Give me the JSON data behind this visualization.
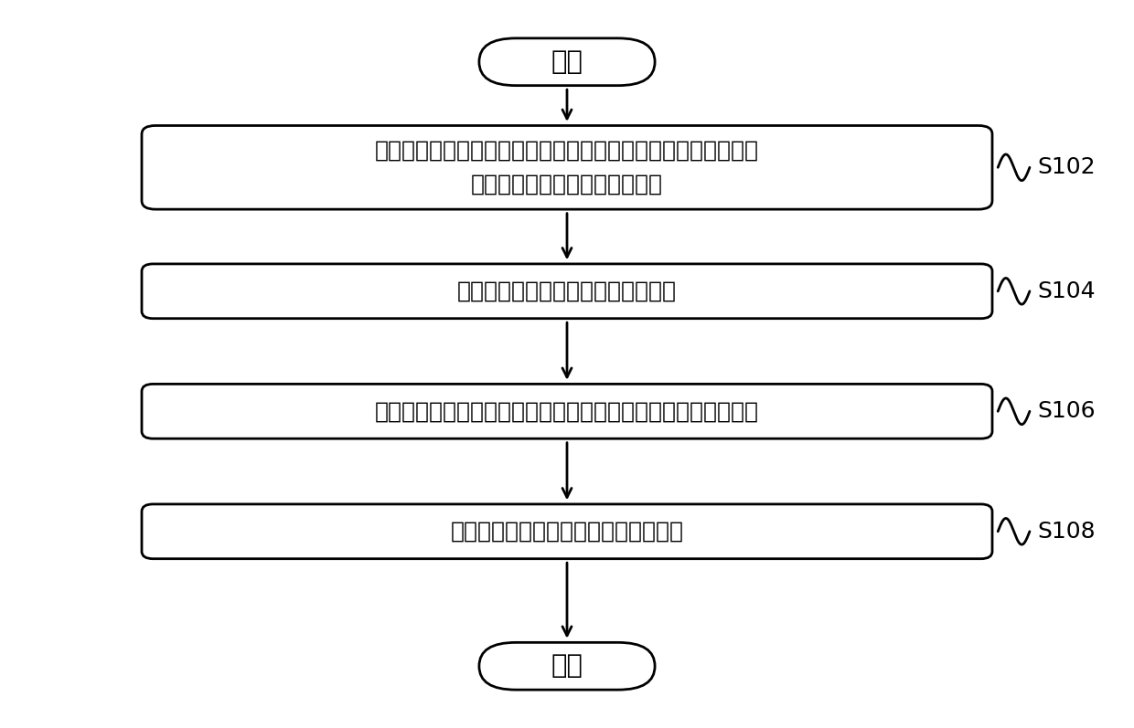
{
  "background_color": "#ffffff",
  "start_end_text": [
    "开始",
    "结束"
  ],
  "box_texts": [
    "接收开启指令后，确定冰筱由断电状态变为通电状态时所处环境\n的环境温度以及冰筱的筱内温度",
    "根据环境温度确定至少一个筱温区间",
    "根据筱内温度以及至少一个筱温区间确定冰筱中风机的延时时间",
    "在接收开启指令后的延时时间启动风机"
  ],
  "step_labels": [
    "S102",
    "S104",
    "S106",
    "S108"
  ],
  "box_color": "#ffffff",
  "box_edge_color": "#000000",
  "text_color": "#000000",
  "arrow_color": "#000000",
  "font_size": 18,
  "label_font_size": 18,
  "figsize": [
    12.4,
    7.97
  ],
  "dpi": 100
}
